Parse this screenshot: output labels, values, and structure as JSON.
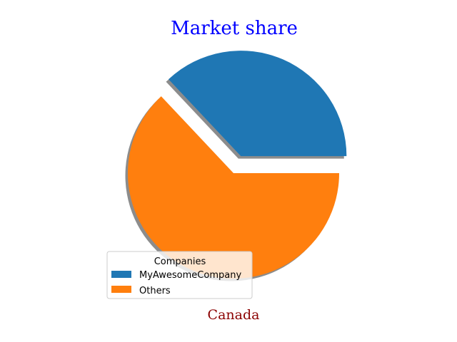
{
  "chart_data": {
    "type": "pie",
    "title": "Market share",
    "xlabel": "Canada",
    "slices": [
      {
        "label": "MyAwesomeCompany",
        "value": 37,
        "color": "#1f77b4",
        "exploded": true
      },
      {
        "label": "Others",
        "value": 63,
        "color": "#ff7f0e",
        "exploded": false
      }
    ],
    "shadow": true,
    "title_color": "#0000ff",
    "xlabel_color": "#8b0000",
    "legend": {
      "title": "Companies",
      "placement": "lower-left",
      "entries": [
        "MyAwesomeCompany",
        "Others"
      ]
    }
  }
}
